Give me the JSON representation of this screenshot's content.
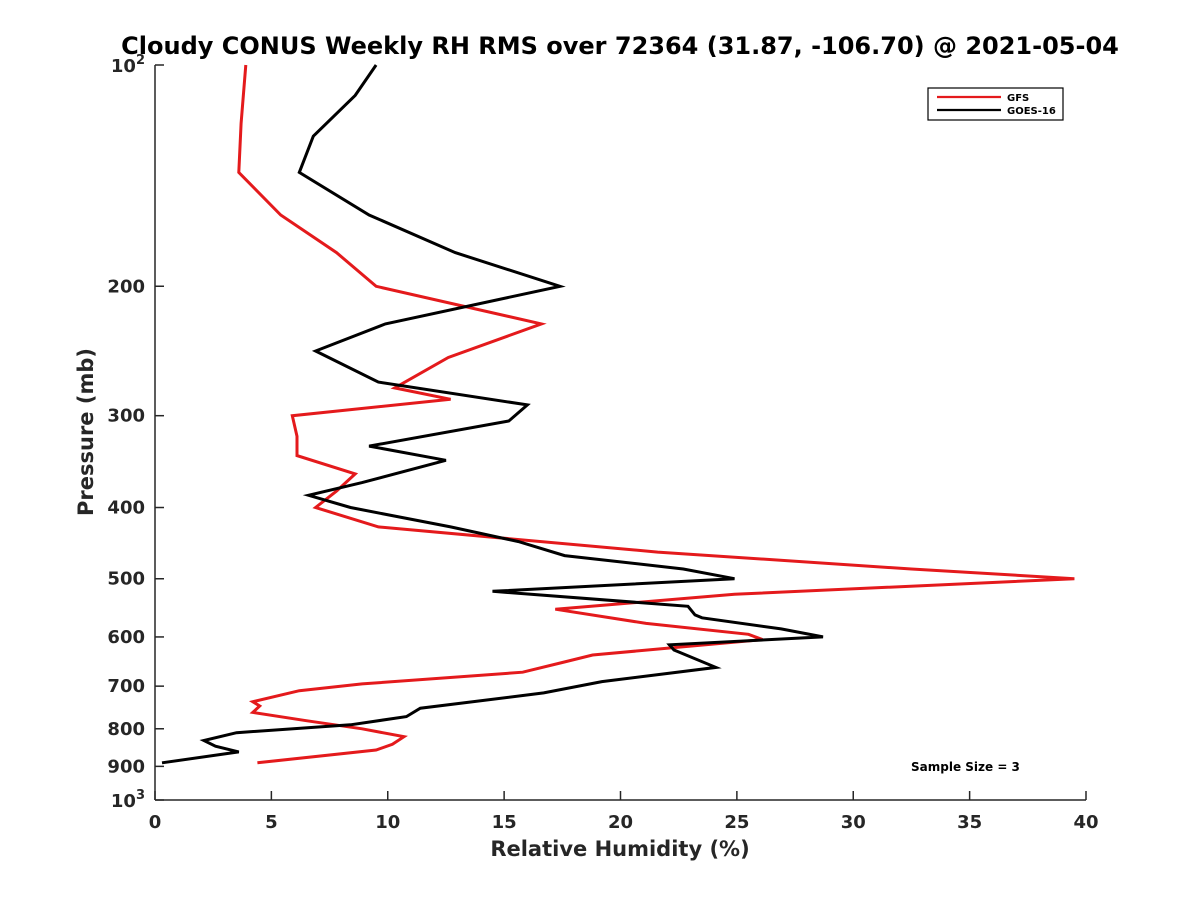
{
  "chart_data": {
    "type": "line",
    "title": "Cloudy CONUS Weekly RH RMS over 72364 (31.87, -106.70) @ 2021-05-04",
    "xlabel": "Relative Humidity (%)",
    "ylabel": "Pressure (mb)",
    "xlim": [
      0,
      40
    ],
    "ylim": [
      100,
      1000
    ],
    "y_scale": "log",
    "y_reversed": true,
    "x_ticks": [
      0,
      5,
      10,
      15,
      20,
      25,
      30,
      35,
      40
    ],
    "y_ticks": [
      200,
      300,
      400,
      500,
      600,
      700,
      800,
      900
    ],
    "y_tick_labels_power": [
      {
        "value": 100,
        "base": "10",
        "exp": "2"
      },
      {
        "value": 1000,
        "base": "10",
        "exp": "3"
      }
    ],
    "grid": false,
    "legend_position": "top-right",
    "series": [
      {
        "name": "GFS",
        "color": "#e41a1c",
        "points": [
          [
            3.9,
            100
          ],
          [
            3.7,
            120
          ],
          [
            3.6,
            140
          ],
          [
            5.4,
            160
          ],
          [
            7.8,
            180
          ],
          [
            9.5,
            200
          ],
          [
            16.6,
            225
          ],
          [
            12.6,
            250
          ],
          [
            10.3,
            275
          ],
          [
            12.7,
            285
          ],
          [
            5.9,
            300
          ],
          [
            6.1,
            320
          ],
          [
            6.1,
            340
          ],
          [
            8.6,
            360
          ],
          [
            7.8,
            380
          ],
          [
            6.9,
            400
          ],
          [
            9.6,
            425
          ],
          [
            21.6,
            460
          ],
          [
            32.5,
            485
          ],
          [
            39.5,
            500
          ],
          [
            24.9,
            525
          ],
          [
            17.2,
            550
          ],
          [
            21.1,
            575
          ],
          [
            25.5,
            595
          ],
          [
            26.1,
            605
          ],
          [
            18.8,
            635
          ],
          [
            17.5,
            650
          ],
          [
            15.8,
            670
          ],
          [
            8.9,
            695
          ],
          [
            6.2,
            710
          ],
          [
            4.2,
            735
          ],
          [
            4.5,
            745
          ],
          [
            4.2,
            760
          ],
          [
            6.5,
            780
          ],
          [
            8.9,
            800
          ],
          [
            10.7,
            820
          ],
          [
            10.2,
            840
          ],
          [
            9.5,
            855
          ],
          [
            4.4,
            890
          ]
        ]
      },
      {
        "name": "GOES-16",
        "color": "#000000",
        "points": [
          [
            9.5,
            100
          ],
          [
            8.6,
            110
          ],
          [
            6.8,
            125
          ],
          [
            6.2,
            140
          ],
          [
            9.2,
            160
          ],
          [
            12.9,
            180
          ],
          [
            17.4,
            200
          ],
          [
            9.9,
            225
          ],
          [
            6.9,
            245
          ],
          [
            9.6,
            270
          ],
          [
            16.0,
            290
          ],
          [
            15.2,
            305
          ],
          [
            9.2,
            330
          ],
          [
            12.5,
            345
          ],
          [
            8.9,
            370
          ],
          [
            6.6,
            385
          ],
          [
            8.4,
            400
          ],
          [
            12.7,
            425
          ],
          [
            15.6,
            445
          ],
          [
            17.6,
            465
          ],
          [
            22.7,
            485
          ],
          [
            24.9,
            500
          ],
          [
            14.5,
            520
          ],
          [
            22.9,
            545
          ],
          [
            23.2,
            560
          ],
          [
            23.5,
            565
          ],
          [
            26.9,
            585
          ],
          [
            28.7,
            600
          ],
          [
            22.1,
            615
          ],
          [
            22.3,
            625
          ],
          [
            24.1,
            660
          ],
          [
            19.2,
            690
          ],
          [
            16.7,
            715
          ],
          [
            11.4,
            750
          ],
          [
            10.8,
            770
          ],
          [
            8.4,
            790
          ],
          [
            3.5,
            810
          ],
          [
            2.1,
            830
          ],
          [
            2.6,
            845
          ],
          [
            3.6,
            860
          ],
          [
            0.3,
            890
          ]
        ]
      }
    ],
    "annotation": "Sample Size = 3"
  }
}
